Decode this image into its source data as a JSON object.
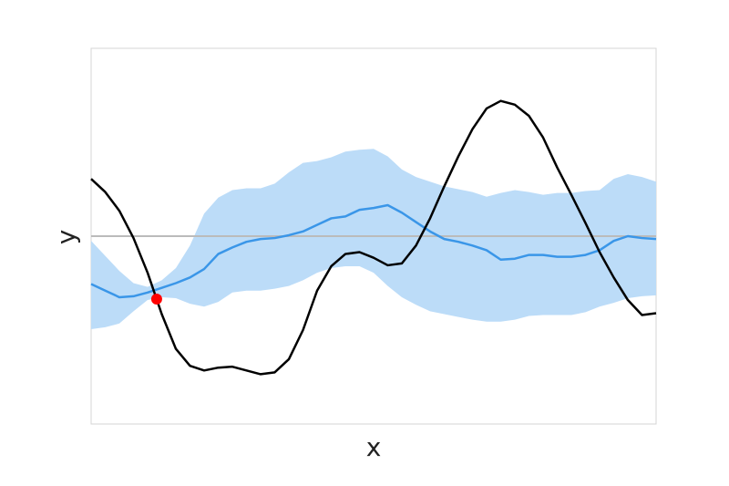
{
  "chart_data": {
    "type": "line",
    "xlabel": "x",
    "ylabel": "y",
    "xlim": [
      0,
      10
    ],
    "ylim": [
      -2,
      2
    ],
    "x": [
      0,
      0.25,
      0.5,
      0.75,
      1,
      1.25,
      1.5,
      1.75,
      2,
      2.25,
      2.5,
      2.75,
      3,
      3.25,
      3.5,
      3.75,
      4,
      4.25,
      4.5,
      4.75,
      5,
      5.25,
      5.5,
      5.75,
      6,
      6.25,
      6.5,
      6.75,
      7,
      7.25,
      7.5,
      7.75,
      8,
      8.25,
      8.5,
      8.75,
      9,
      9.25,
      9.5,
      9.75,
      10
    ],
    "band": {
      "color": "#bcdcf8",
      "upper": [
        -0.05,
        -0.21,
        -0.37,
        -0.5,
        -0.54,
        -0.47,
        -0.34,
        -0.1,
        0.24,
        0.41,
        0.49,
        0.51,
        0.51,
        0.56,
        0.68,
        0.78,
        0.8,
        0.84,
        0.9,
        0.92,
        0.93,
        0.85,
        0.71,
        0.63,
        0.58,
        0.53,
        0.5,
        0.47,
        0.42,
        0.46,
        0.49,
        0.47,
        0.44,
        0.46,
        0.46,
        0.48,
        0.49,
        0.61,
        0.66,
        0.63,
        0.58
      ],
      "lower": [
        -0.99,
        -0.97,
        -0.93,
        -0.8,
        -0.68,
        -0.65,
        -0.66,
        -0.72,
        -0.75,
        -0.7,
        -0.6,
        -0.58,
        -0.58,
        -0.56,
        -0.53,
        -0.47,
        -0.39,
        -0.34,
        -0.32,
        -0.32,
        -0.39,
        -0.53,
        -0.65,
        -0.73,
        -0.8,
        -0.83,
        -0.86,
        -0.89,
        -0.91,
        -0.91,
        -0.89,
        -0.85,
        -0.84,
        -0.84,
        -0.84,
        -0.81,
        -0.75,
        -0.71,
        -0.66,
        -0.64,
        -0.63
      ]
    },
    "hline": {
      "value": 0,
      "color": "#bbbbbb"
    },
    "series": [
      {
        "color": "#3a96e8",
        "values": [
          -0.51,
          -0.58,
          -0.65,
          -0.64,
          -0.6,
          -0.55,
          -0.5,
          -0.44,
          -0.35,
          -0.19,
          -0.12,
          -0.06,
          -0.03,
          -0.02,
          0.01,
          0.05,
          0.12,
          0.19,
          0.21,
          0.28,
          0.3,
          0.33,
          0.25,
          0.15,
          0.05,
          -0.03,
          -0.06,
          -0.1,
          -0.15,
          -0.25,
          -0.24,
          -0.2,
          -0.2,
          -0.22,
          -0.22,
          -0.2,
          -0.15,
          -0.05,
          0,
          -0.02,
          -0.03
        ]
      },
      {
        "color": "#000000",
        "values": [
          0.61,
          0.47,
          0.27,
          -0.02,
          -0.39,
          -0.83,
          -1.2,
          -1.38,
          -1.43,
          -1.4,
          -1.39,
          -1.43,
          -1.47,
          -1.45,
          -1.31,
          -1,
          -0.58,
          -0.32,
          -0.19,
          -0.17,
          -0.23,
          -0.31,
          -0.29,
          -0.1,
          0.19,
          0.53,
          0.85,
          1.14,
          1.36,
          1.44,
          1.4,
          1.28,
          1.05,
          0.73,
          0.44,
          0.14,
          -0.17,
          -0.44,
          -0.68,
          -0.84,
          -0.82
        ]
      }
    ],
    "points": [
      {
        "x": 1.16,
        "y": -0.67,
        "color": "#ff0000"
      }
    ]
  }
}
